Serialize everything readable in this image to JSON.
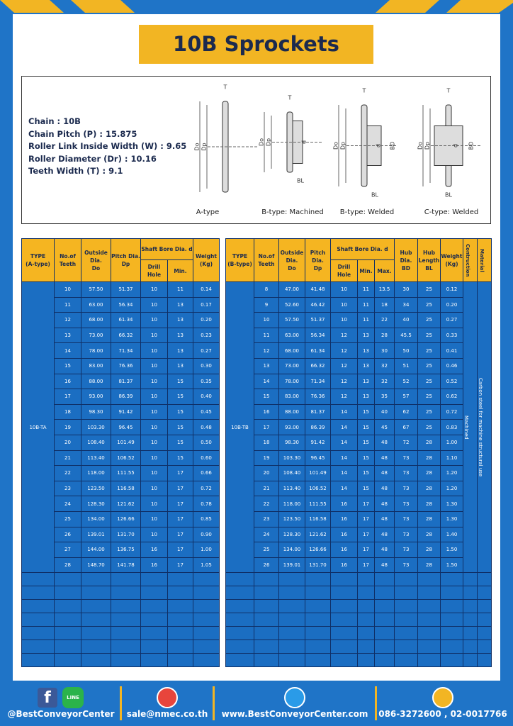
{
  "header": {
    "title": "10B Sprockets"
  },
  "specs": [
    "Chain : 10B",
    "Chain Pitch (P) : 15.875",
    "Roller Link Inside Width (W) : 9.65",
    "Roller Diameter (Dr) : 10.16",
    "Teeth Width (T) : 9.1"
  ],
  "diagrams": [
    {
      "caption": "A-type",
      "labels": [
        "T",
        "Do",
        "Dp"
      ]
    },
    {
      "caption": "B-type: Machined",
      "labels": [
        "T",
        "Do",
        "Dp",
        "d",
        "BL"
      ]
    },
    {
      "caption": "B-type: Welded",
      "labels": [
        "T",
        "Do",
        "Dp",
        "d",
        "BD",
        "BL"
      ]
    },
    {
      "caption": "C-type: Welded",
      "labels": [
        "T",
        "Do",
        "Dp",
        "d",
        "BD",
        "BL"
      ]
    }
  ],
  "table_a": {
    "columns": [
      {
        "lines": [
          "TYPE",
          "(A-type)"
        ]
      },
      {
        "lines": [
          "No.of",
          "Teeth"
        ]
      },
      {
        "lines": [
          "Outside",
          "Dia.",
          "Do"
        ]
      },
      {
        "lines": [
          "Pitch Dia.",
          "Dp"
        ]
      },
      {
        "group": "Shaft Bore Dia. d",
        "sub": [
          [
            "Drill Hole"
          ],
          [
            "Min."
          ]
        ]
      },
      {
        "lines": [
          "Weight",
          "(Kg)"
        ]
      }
    ],
    "type_label": "10B-TA",
    "rows": [
      [
        "10",
        "57.50",
        "51.37",
        "10",
        "11",
        "0.14"
      ],
      [
        "11",
        "63.00",
        "56.34",
        "10",
        "13",
        "0.17"
      ],
      [
        "12",
        "68.00",
        "61.34",
        "10",
        "13",
        "0.20"
      ],
      [
        "13",
        "73.00",
        "66.32",
        "10",
        "13",
        "0.23"
      ],
      [
        "14",
        "78.00",
        "71.34",
        "10",
        "13",
        "0.27"
      ],
      [
        "15",
        "83.00",
        "76.36",
        "10",
        "13",
        "0.30"
      ],
      [
        "16",
        "88.00",
        "81.37",
        "10",
        "15",
        "0.35"
      ],
      [
        "17",
        "93.00",
        "86.39",
        "10",
        "15",
        "0.40"
      ],
      [
        "18",
        "98.30",
        "91.42",
        "10",
        "15",
        "0.45"
      ],
      [
        "19",
        "103.30",
        "96.45",
        "10",
        "15",
        "0.48"
      ],
      [
        "20",
        "108.40",
        "101.49",
        "10",
        "15",
        "0.50"
      ],
      [
        "21",
        "113.40",
        "106.52",
        "10",
        "15",
        "0.60"
      ],
      [
        "22",
        "118.00",
        "111.55",
        "10",
        "17",
        "0.66"
      ],
      [
        "23",
        "123.50",
        "116.58",
        "10",
        "17",
        "0.72"
      ],
      [
        "24",
        "128.30",
        "121.62",
        "10",
        "17",
        "0.78"
      ],
      [
        "25",
        "134.00",
        "126.66",
        "10",
        "17",
        "0.85"
      ],
      [
        "26",
        "139.01",
        "131.70",
        "10",
        "17",
        "0.90"
      ],
      [
        "27",
        "144.00",
        "136.75",
        "16",
        "17",
        "1.00"
      ],
      [
        "28",
        "148.70",
        "141.78",
        "16",
        "17",
        "1.05"
      ]
    ]
  },
  "table_b": {
    "columns": [
      {
        "lines": [
          "TYPE",
          "(B-type)"
        ]
      },
      {
        "lines": [
          "No.of",
          "Teeth"
        ]
      },
      {
        "lines": [
          "Outside",
          "Dia.",
          "Do"
        ]
      },
      {
        "lines": [
          "Pitch Dia.",
          "Dp"
        ]
      },
      {
        "group": "Shaft Bore Dia. d",
        "sub": [
          [
            "Drill Hole"
          ],
          [
            "Min."
          ],
          [
            "Max."
          ]
        ]
      },
      {
        "lines": [
          "Hub Dia.",
          "BD"
        ]
      },
      {
        "lines": [
          "Hub",
          "Length",
          "BL"
        ]
      },
      {
        "lines": [
          "Weight",
          "(Kg)"
        ]
      }
    ],
    "side_columns": [
      {
        "header": "Contruction",
        "value": "Machined"
      },
      {
        "header": "Material",
        "value": "Carbon steel  for machine structural use"
      }
    ],
    "type_label": "10B-TB",
    "rows": [
      [
        "8",
        "47.00",
        "41.48",
        "10",
        "11",
        "13.5",
        "30",
        "25",
        "0.12"
      ],
      [
        "9",
        "52.60",
        "46.42",
        "10",
        "11",
        "18",
        "34",
        "25",
        "0.20"
      ],
      [
        "10",
        "57.50",
        "51.37",
        "10",
        "11",
        "22",
        "40",
        "25",
        "0.27"
      ],
      [
        "11",
        "63.00",
        "56.34",
        "12",
        "13",
        "28",
        "45.5",
        "25",
        "0.33"
      ],
      [
        "12",
        "68.00",
        "61.34",
        "12",
        "13",
        "30",
        "50",
        "25",
        "0.41"
      ],
      [
        "13",
        "73.00",
        "66.32",
        "12",
        "13",
        "32",
        "51",
        "25",
        "0.46"
      ],
      [
        "14",
        "78.00",
        "71.34",
        "12",
        "13",
        "32",
        "52",
        "25",
        "0.52"
      ],
      [
        "15",
        "83.00",
        "76.36",
        "12",
        "13",
        "35",
        "57",
        "25",
        "0.62"
      ],
      [
        "16",
        "88.00",
        "81.37",
        "14",
        "15",
        "40",
        "62",
        "25",
        "0.72"
      ],
      [
        "17",
        "93.00",
        "86.39",
        "14",
        "15",
        "45",
        "67",
        "25",
        "0.83"
      ],
      [
        "18",
        "98.30",
        "91.42",
        "14",
        "15",
        "48",
        "72",
        "28",
        "1.00"
      ],
      [
        "19",
        "103.30",
        "96.45",
        "14",
        "15",
        "48",
        "73",
        "28",
        "1.10"
      ],
      [
        "20",
        "108.40",
        "101.49",
        "14",
        "15",
        "48",
        "73",
        "28",
        "1.20"
      ],
      [
        "21",
        "113.40",
        "106.52",
        "14",
        "15",
        "48",
        "73",
        "28",
        "1.20"
      ],
      [
        "22",
        "118.00",
        "111.55",
        "16",
        "17",
        "48",
        "73",
        "28",
        "1.30"
      ],
      [
        "23",
        "123.50",
        "116.58",
        "16",
        "17",
        "48",
        "73",
        "28",
        "1.30"
      ],
      [
        "24",
        "128.30",
        "121.62",
        "16",
        "17",
        "48",
        "73",
        "28",
        "1.40"
      ],
      [
        "25",
        "134.00",
        "126.66",
        "16",
        "17",
        "48",
        "73",
        "28",
        "1.50"
      ],
      [
        "26",
        "139.01",
        "131.70",
        "16",
        "17",
        "48",
        "73",
        "28",
        "1.50"
      ]
    ]
  },
  "footer": {
    "facebook_icon": "f",
    "line_icon": "LINE",
    "social": "@BestConveyorCenter",
    "email": "sale@nmec.co.th",
    "website": "www.BestConveyorCenter.com",
    "phone": "086-3272600 , 02-0017766"
  }
}
